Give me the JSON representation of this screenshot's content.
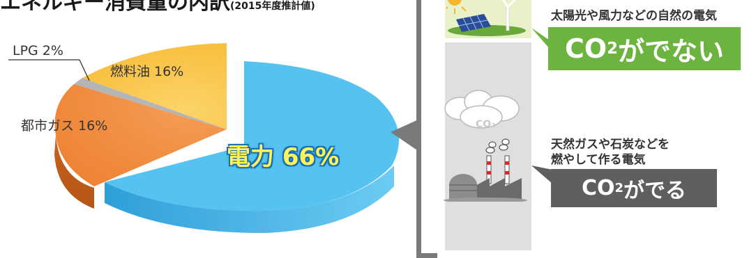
{
  "header": {
    "title": "エネルギー消費量の内訳",
    "note": "(2015年度推計値)"
  },
  "chart_data": {
    "type": "pie",
    "categories": [
      "電力",
      "都市ガス",
      "LPG",
      "燃料油"
    ],
    "values": [
      66,
      16,
      2,
      16
    ],
    "colors": [
      "#5bbfee",
      "#f0883a",
      "#b7b7b7",
      "#f8be3b"
    ],
    "labels": {
      "electric": "電力 66%",
      "city_gas": "都市ガス 16%",
      "lpg": "LPG 2%",
      "fuel_oil": "燃料油 16%"
    }
  },
  "panel": {
    "renewable": {
      "caption": "太陽光や風力などの自然の電気",
      "badge_main": "CO",
      "badge_sub": "2",
      "badge_tail": "がでない",
      "badge_color": "#6db33f"
    },
    "fossil": {
      "cloud_text": "CO₂",
      "caption_line1": "天然ガスや石炭などを",
      "caption_line2": "燃やして作る電気",
      "badge_main": "CO",
      "badge_sub": "2",
      "badge_tail": "がでる",
      "badge_color": "#5f5f5f"
    }
  }
}
